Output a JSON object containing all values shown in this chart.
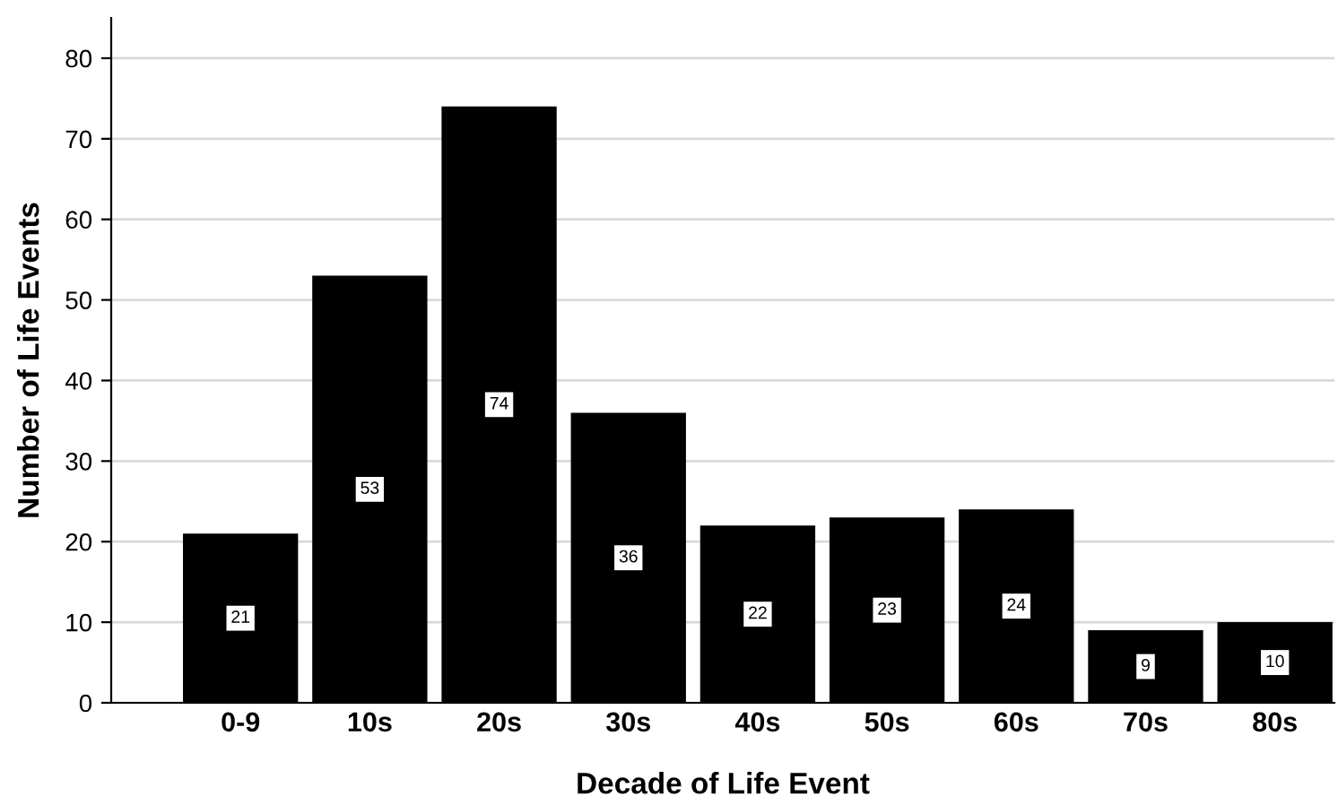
{
  "chart_data": {
    "type": "bar",
    "xlabel": "Decade of Life Event",
    "ylabel": "Number of Life Events",
    "categories": [
      "0-9",
      "10s",
      "20s",
      "30s",
      "40s",
      "50s",
      "60s",
      "70s",
      "80s"
    ],
    "values": [
      21,
      53,
      74,
      36,
      22,
      23,
      24,
      9,
      10
    ],
    "color": "#000000",
    "ylim": [
      0,
      85
    ],
    "yticks": [
      0,
      10,
      20,
      30,
      40,
      50,
      60,
      70,
      80
    ],
    "grid": "y",
    "data_labels": true
  }
}
